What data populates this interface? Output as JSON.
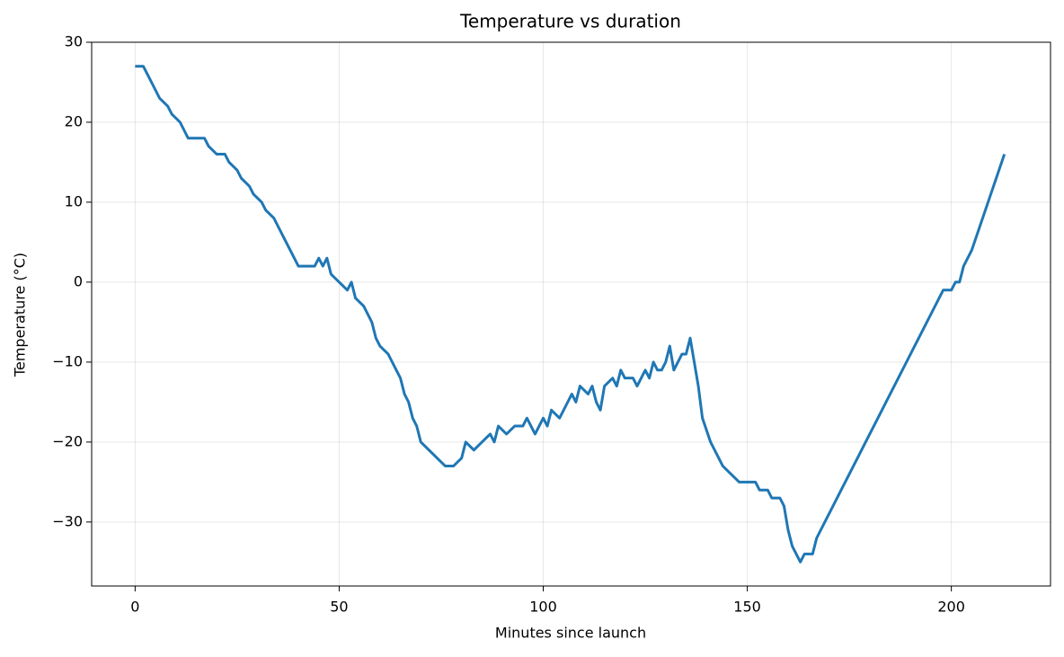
{
  "chart_data": {
    "type": "line",
    "title": "Temperature vs duration",
    "x_label": "Minutes since launch",
    "y_label": "Temperature (°C)",
    "xlim": [
      -10.65,
      224.3
    ],
    "ylim": [
      -38,
      30
    ],
    "xticks": [
      0,
      50,
      100,
      150,
      200
    ],
    "yticks": [
      {
        "value": -30,
        "label": "−30"
      },
      {
        "value": -20,
        "label": "−20"
      },
      {
        "value": -10,
        "label": "−10"
      },
      0,
      10,
      20,
      30
    ],
    "grid": true,
    "series": [
      {
        "color": "#1f77b4",
        "x": [
          0,
          2,
          3,
          4,
          5,
          6,
          8,
          9,
          11,
          12,
          13,
          17,
          18,
          20,
          22,
          23,
          25,
          26,
          28,
          29,
          31,
          32,
          34,
          35,
          36,
          37,
          38,
          39,
          40,
          44,
          45,
          46,
          47,
          48,
          50,
          52,
          53,
          54,
          56,
          58,
          59,
          60,
          62,
          63,
          64,
          65,
          66,
          67,
          68,
          69,
          70,
          72,
          74,
          76,
          78,
          80,
          81,
          83,
          85,
          87,
          88,
          89,
          91,
          93,
          95,
          96,
          98,
          99,
          100,
          101,
          102,
          104,
          105,
          106,
          107,
          108,
          109,
          111,
          112,
          113,
          114,
          115,
          117,
          118,
          119,
          120,
          122,
          123,
          124,
          125,
          126,
          127,
          128,
          129,
          130,
          131,
          132,
          133,
          134,
          135,
          136,
          137,
          138,
          139,
          141,
          142,
          144,
          146,
          148,
          152,
          153,
          155,
          156,
          158,
          159,
          160,
          161,
          162,
          163,
          164,
          166,
          167,
          169,
          171,
          173,
          175,
          177,
          179,
          181,
          183,
          185,
          187,
          189,
          191,
          193,
          195,
          197,
          198,
          200,
          201,
          202,
          203,
          205,
          207,
          209,
          211,
          213
        ],
        "values": [
          27,
          27,
          26,
          25,
          24,
          23,
          22,
          21,
          20,
          19,
          18,
          18,
          17,
          16,
          16,
          15,
          14,
          13,
          12,
          11,
          10,
          9,
          8,
          7,
          6,
          5,
          4,
          3,
          2,
          2,
          3,
          2,
          3,
          1,
          0,
          -1,
          0,
          -2,
          -3,
          -5,
          -7,
          -8,
          -9,
          -10,
          -11,
          -12,
          -14,
          -15,
          -17,
          -18,
          -20,
          -21,
          -22,
          -23,
          -23,
          -22,
          -20,
          -21,
          -20,
          -19,
          -20,
          -18,
          -19,
          -18,
          -18,
          -17,
          -19,
          -18,
          -17,
          -18,
          -16,
          -17,
          -16,
          -15,
          -14,
          -15,
          -13,
          -14,
          -13,
          -15,
          -16,
          -13,
          -12,
          -13,
          -11,
          -12,
          -12,
          -13,
          -12,
          -11,
          -12,
          -10,
          -11,
          -11,
          -10,
          -8,
          -11,
          -10,
          -9,
          -9,
          -7,
          -10,
          -13,
          -17,
          -20,
          -21,
          -23,
          -24,
          -25,
          -25,
          -26,
          -26,
          -27,
          -27,
          -28,
          -31,
          -33,
          -34,
          -35,
          -34,
          -34,
          -32,
          -30,
          -28,
          -26,
          -24,
          -22,
          -20,
          -18,
          -16,
          -14,
          -12,
          -10,
          -8,
          -6,
          -4,
          -2,
          -1,
          -1,
          0,
          0,
          2,
          4,
          7,
          10,
          13,
          16
        ]
      }
    ]
  }
}
